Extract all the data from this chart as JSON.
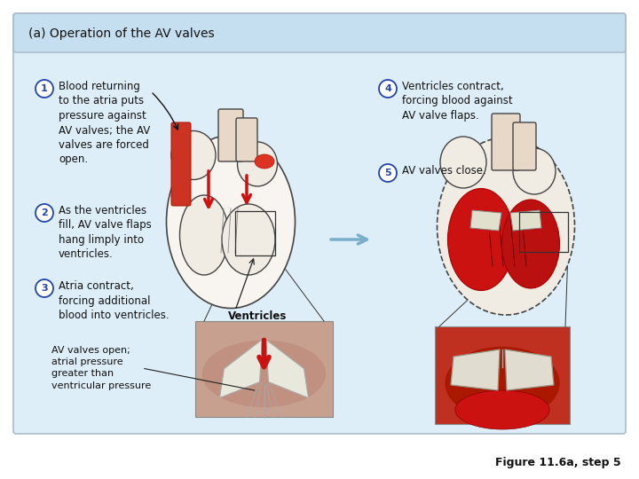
{
  "title": "(a) Operation of the AV valves",
  "title_bg": "#c5dff0",
  "main_bg": "#ddeef8",
  "outer_bg": "#ffffff",
  "figure_caption": "Figure 11.6a, step 5",
  "title_fontsize": 10,
  "body_fontsize": 8.5,
  "small_fontsize": 8,
  "circled_nums": [
    "1",
    "2",
    "3",
    "4",
    "5"
  ],
  "left_texts": [
    "Blood returning\nto the atria puts\npressure against\nAV valves; the AV\nvalves are forced\nopen.",
    "As the ventricles\nfill, AV valve flaps\nhang limply into\nventricles.",
    "Atria contract,\nforcing additional\nblood into ventricles."
  ],
  "right_texts": [
    "Ventricles contract,\nforcing blood against\nAV valve flaps.",
    "AV valves close."
  ],
  "ventricles_label": "Ventricles",
  "av_open_label": "AV valves open;\natrial pressure\ngreater than\nventricular pressure",
  "heart_bg": "#f5f0ea",
  "heart_outline": "#444444",
  "red_color": "#cc1111",
  "dark_red": "#aa0000",
  "inset_left_bg": "#d4a898",
  "inset_right_bg": "#b03020",
  "valve_white": "#e8e8dc",
  "blue_arrow": "#7aadcc",
  "black_line": "#222222"
}
